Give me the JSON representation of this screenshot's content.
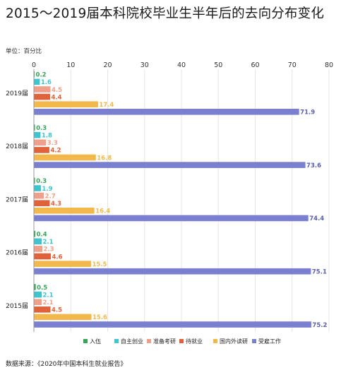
{
  "page": {
    "title": "2015～2019届本科院校毕业生半年后的去向分布变化",
    "unit": "单位：百分比",
    "source": "数据来源：《2020年中国本科生就业报告》"
  },
  "chart_data": {
    "type": "bar",
    "orientation": "horizontal",
    "title": "2015～2019届本科院校毕业生半年后的去向分布变化",
    "categories": [
      "2019届",
      "2018届",
      "2017届",
      "2016届",
      "2015届"
    ],
    "xlim": [
      0,
      80
    ],
    "xticks": [
      0,
      10,
      20,
      30,
      40,
      50,
      60,
      70,
      80
    ],
    "grid": true,
    "legend_position": "bottom-center",
    "series": [
      {
        "name": "入伍",
        "color": "#3aa35a",
        "values": [
          0.2,
          0.3,
          0.3,
          0.4,
          0.5
        ]
      },
      {
        "name": "自主创业",
        "color": "#3ec3cf",
        "values": [
          1.6,
          1.8,
          1.9,
          2.1,
          2.1
        ]
      },
      {
        "name": "准备考研",
        "color": "#f0a08a",
        "values": [
          4.5,
          3.3,
          2.7,
          2.3,
          2.1
        ]
      },
      {
        "name": "待就业",
        "color": "#e0623a",
        "values": [
          4.4,
          4.2,
          4.3,
          4.6,
          4.5
        ]
      },
      {
        "name": "国内外读研",
        "color": "#f2b84b",
        "values": [
          17.4,
          16.8,
          16.4,
          15.5,
          15.6
        ]
      },
      {
        "name": "受雇工作",
        "color": "#7a7fcf",
        "values": [
          71.9,
          73.6,
          74.4,
          75.1,
          75.2
        ]
      }
    ],
    "label_colors": [
      "#3aa35a",
      "#3ec3cf",
      "#f0a08a",
      "#e0623a",
      "#f2b84b",
      "#5a5fb0"
    ]
  }
}
